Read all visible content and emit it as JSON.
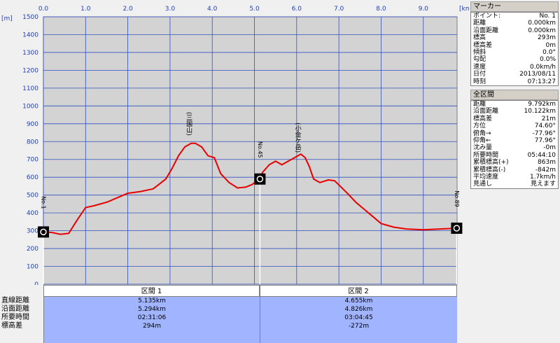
{
  "chart_data": {
    "type": "line",
    "x_unit": "[km]",
    "y_unit": "[m]",
    "xlim": [
      0,
      9.8
    ],
    "ylim": [
      0,
      1500
    ],
    "x_ticks": [
      "0.0",
      "1.0",
      "2.0",
      "3.0",
      "4.0",
      "5.0",
      "6.0",
      "7.0",
      "8.0",
      "9.0"
    ],
    "y_ticks": [
      "0",
      "100",
      "200",
      "300",
      "400",
      "500",
      "600",
      "700",
      "800",
      "900",
      "1000",
      "1100",
      "1200",
      "1300",
      "1400",
      "1500"
    ],
    "series": [
      {
        "color": "#e80000",
        "x": [
          0,
          0.2,
          0.4,
          0.6,
          0.8,
          1.0,
          1.2,
          1.5,
          1.8,
          2.0,
          2.3,
          2.6,
          2.9,
          3.05,
          3.2,
          3.35,
          3.5,
          3.6,
          3.75,
          3.9,
          4.05,
          4.2,
          4.4,
          4.6,
          4.8,
          4.95,
          5.1,
          5.2,
          5.35,
          5.5,
          5.65,
          5.8,
          5.95,
          6.1,
          6.2,
          6.3,
          6.4,
          6.55,
          6.75,
          6.9,
          7.05,
          7.2,
          7.4,
          7.6,
          7.8,
          8.0,
          8.3,
          8.6,
          9.0,
          9.4,
          9.79
        ],
        "y": [
          293,
          290,
          280,
          285,
          360,
          430,
          440,
          460,
          490,
          510,
          520,
          535,
          590,
          650,
          720,
          770,
          790,
          790,
          770,
          720,
          710,
          620,
          570,
          540,
          545,
          560,
          590,
          630,
          670,
          690,
          670,
          690,
          710,
          730,
          710,
          660,
          590,
          570,
          585,
          580,
          545,
          510,
          460,
          420,
          380,
          340,
          320,
          310,
          305,
          310,
          314
        ]
      }
    ],
    "markers": [
      {
        "label": "No.1",
        "x": 0.0,
        "y": 293
      },
      {
        "label": "No.45",
        "x": 5.13,
        "y": 590
      },
      {
        "label": "No.89",
        "x": 9.79,
        "y": 314
      }
    ],
    "annotations": [
      {
        "text": "(三国山)",
        "x": 3.5,
        "y": 790
      },
      {
        "text": "(小金ケ岳)",
        "x": 6.08,
        "y": 730
      }
    ]
  },
  "marker_panel": {
    "title": "マーカー",
    "rows": [
      {
        "k": "ポイント:",
        "v": "No. 1"
      },
      {
        "k": "距離",
        "v": "0.000km"
      },
      {
        "k": "沿面距離",
        "v": "0.000km"
      },
      {
        "k": "標高",
        "v": "293m"
      },
      {
        "k": "標高差",
        "v": "0m"
      },
      {
        "k": "傾斜",
        "v": "0.0°"
      },
      {
        "k": "勾配",
        "v": "0.0%"
      },
      {
        "k": "速度",
        "v": "0.0km/h"
      },
      {
        "k": "日付",
        "v": "2013/08/11"
      },
      {
        "k": "時刻",
        "v": "07:13:27"
      }
    ]
  },
  "section_panel": {
    "title": "全区間",
    "rows": [
      {
        "k": "距離",
        "v": "9.792km"
      },
      {
        "k": "沿面距離",
        "v": "10.122km"
      },
      {
        "k": "標高差",
        "v": "21m"
      },
      {
        "k": "方位",
        "v": "74.60°"
      },
      {
        "k": "俯角→",
        "v": "-77.96°"
      },
      {
        "k": "仰角←",
        "v": "77.96°"
      },
      {
        "k": "沈み量",
        "v": "-0m"
      },
      {
        "k": "所要時間",
        "v": "05:44:10"
      },
      {
        "k": "累積標高(+)",
        "v": "863m"
      },
      {
        "k": "累積標高(-)",
        "v": "-842m"
      },
      {
        "k": "平均速度",
        "v": "1.7km/h"
      },
      {
        "k": "見通し",
        "v": "見えます"
      }
    ]
  },
  "segments": {
    "row_labels": [
      "直線距離",
      "沿面距離",
      "所要時間",
      "標高差"
    ],
    "cols": [
      {
        "header": "区間 1",
        "values": [
          "5.135km",
          "5.294km",
          "02:31:06",
          "294m"
        ]
      },
      {
        "header": "区間 2",
        "values": [
          "4.655km",
          "4.826km",
          "03:04:45",
          "-272m"
        ]
      }
    ]
  }
}
